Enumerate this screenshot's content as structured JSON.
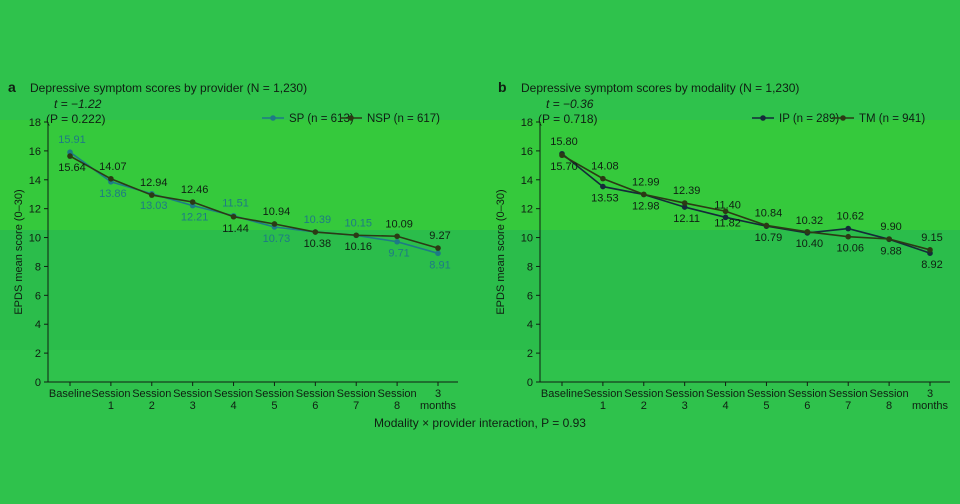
{
  "footer_note": "Modality × provider interaction, P = 0.93",
  "colors": {
    "background": "#2fc24c",
    "band": "#39d43a",
    "series_primary": "#1e7a86",
    "series_secondary": "#2b3a14",
    "text": "#0f1f12"
  },
  "chart_data": [
    {
      "type": "line",
      "panel_label": "a",
      "title": "Depressive symptom scores by provider (N = 1,230)",
      "stat_t": "t = −1.22",
      "stat_p": "(P = 0.222)",
      "ylabel": "EPDS mean score (0–30)",
      "ylim": [
        0,
        18
      ],
      "yticks": [
        0,
        2,
        4,
        6,
        8,
        10,
        12,
        14,
        16,
        18
      ],
      "categories": [
        [
          "Baseline"
        ],
        [
          "Session",
          "1"
        ],
        [
          "Session",
          "2"
        ],
        [
          "Session",
          "3"
        ],
        [
          "Session",
          "4"
        ],
        [
          "Session",
          "5"
        ],
        [
          "Session",
          "6"
        ],
        [
          "Session",
          "7"
        ],
        [
          "Session",
          "8"
        ],
        [
          "3",
          "months"
        ]
      ],
      "series": [
        {
          "name": "SP (n = 613)",
          "values": [
            15.91,
            13.86,
            13.03,
            12.21,
            11.51,
            10.73,
            10.39,
            10.15,
            9.71,
            8.91
          ],
          "color": "#1e7a86",
          "labels": [
            "15.91",
            "13.86",
            "13.03",
            "12.21",
            "11.51",
            "10.73",
            "10.39",
            "10.15",
            "9.71",
            "8.91"
          ]
        },
        {
          "name": "NSP (n = 617)",
          "values": [
            15.64,
            14.07,
            12.94,
            12.46,
            11.44,
            10.94,
            10.38,
            10.16,
            10.09,
            9.27
          ],
          "color": "#2b3a14",
          "labels": [
            "15.64",
            "14.07",
            "12.94",
            "12.46",
            "11.44",
            "10.94",
            "10.38",
            "10.16",
            "10.09",
            "9.27"
          ]
        }
      ]
    },
    {
      "type": "line",
      "panel_label": "b",
      "title": "Depressive symptom scores by modality (N = 1,230)",
      "stat_t": "t = −0.36",
      "stat_p": "(P = 0.718)",
      "ylabel": "EPDS mean score (0–30)",
      "ylim": [
        0,
        18
      ],
      "yticks": [
        0,
        2,
        4,
        6,
        8,
        10,
        12,
        14,
        16,
        18
      ],
      "categories": [
        [
          "Baseline"
        ],
        [
          "Session",
          "1"
        ],
        [
          "Session",
          "2"
        ],
        [
          "Session",
          "3"
        ],
        [
          "Session",
          "4"
        ],
        [
          "Session",
          "5"
        ],
        [
          "Session",
          "6"
        ],
        [
          "Session",
          "7"
        ],
        [
          "Session",
          "8"
        ],
        [
          "3",
          "months"
        ]
      ],
      "series": [
        {
          "name": "IP (n = 289)",
          "values": [
            15.8,
            13.53,
            12.98,
            12.11,
            11.4,
            10.79,
            10.32,
            10.62,
            9.88,
            8.92
          ],
          "color": "#142a3a",
          "labels": [
            "15.80",
            "13.53",
            "12.98",
            "12.11",
            "11.40",
            "10.79",
            "10.32",
            "10.62",
            "9.88",
            "8.92"
          ]
        },
        {
          "name": "TM (n = 941)",
          "values": [
            15.7,
            14.08,
            12.99,
            12.39,
            11.82,
            10.84,
            10.4,
            10.06,
            9.9,
            9.15
          ],
          "color": "#2b3a14",
          "labels": [
            "15.70",
            "14.08",
            "12.99",
            "12.39",
            "11.82",
            "10.84",
            "10.40",
            "10.06",
            "9.90",
            "9.15"
          ]
        }
      ]
    }
  ]
}
